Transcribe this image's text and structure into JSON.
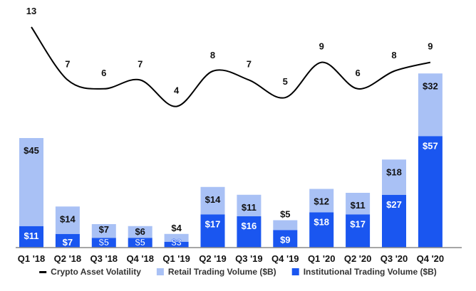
{
  "chart_data": {
    "type": "bar",
    "stacked": true,
    "categories": [
      "Q1 '18",
      "Q2 '18",
      "Q3 '18",
      "Q4 '18",
      "Q1 '19",
      "Q2 '19",
      "Q3 '19",
      "Q4 '19",
      "Q1 '20",
      "Q2 '20",
      "Q3 '20",
      "Q4 '20"
    ],
    "series": [
      {
        "name": "Institutional Trading Volume ($B)",
        "kind": "bar",
        "color": "#1a56f0",
        "values": [
          11,
          7,
          5,
          5,
          3,
          17,
          16,
          9,
          18,
          17,
          27,
          57
        ],
        "labels": [
          "$11",
          "$7",
          "$5",
          "$5",
          "$3",
          "$17",
          "$16",
          "$9",
          "$18",
          "$17",
          "$27",
          "$57"
        ]
      },
      {
        "name": "Retail Trading Volume ($B)",
        "kind": "bar",
        "color": "#a9c1f5",
        "values": [
          45,
          14,
          7,
          6,
          4,
          14,
          11,
          5,
          12,
          11,
          18,
          32
        ],
        "labels": [
          "$45",
          "$14",
          "$7",
          "$6",
          "$4",
          "$14",
          "$11",
          "$5",
          "$12",
          "$11",
          "$18",
          "$32"
        ]
      },
      {
        "name": "Crypto Asset Volatility",
        "kind": "line",
        "color": "#000000",
        "values": [
          13,
          7,
          6,
          7,
          4,
          8,
          7,
          5,
          9,
          6,
          8,
          9
        ]
      }
    ],
    "legend_order": [
      "Crypto Asset Volatility",
      "Retail Trading Volume ($B)",
      "Institutional Trading Volume ($B)"
    ],
    "legend_placement": "bottom",
    "grid": false
  }
}
